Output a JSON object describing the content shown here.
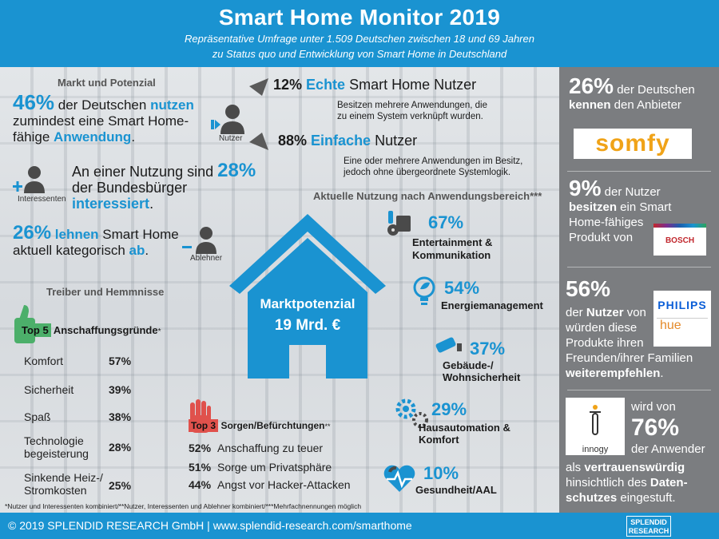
{
  "header": {
    "title": "Smart Home Monitor 2019",
    "subtitle_1": "Repräsentative Umfrage unter 1.509 Deutschen zwischen 18 und 69 Jahren",
    "subtitle_2": "zu Status quo und Entwicklung von Smart Home in Deutschland"
  },
  "market": {
    "heading": "Markt und Potenzial",
    "users": {
      "pct": "46%",
      "t1": " der Deutschen ",
      "t2": "nutzen",
      "t3": "zumindest eine Smart Home-",
      "t4": "fähige ",
      "t5": "Anwendung",
      "t6": ".",
      "icon_label": "Nutzer"
    },
    "interested": {
      "t1": "An einer Nutzung sind",
      "pct": "28%",
      "t2": "der Bundesbürger ",
      "t3": "interessiert",
      "t4": ".",
      "icon_label": "Interessenten"
    },
    "rejecters": {
      "pct": "26%",
      "t1": " lehnen",
      "t2": " Smart Home",
      "t3": "aktuell kategorisch ",
      "t4": "ab",
      "t5": ".",
      "icon_label": "Ablehner"
    }
  },
  "segments": {
    "real": {
      "pct": "12%",
      "label_blue": "Echte",
      "label": " Smart Home Nutzer",
      "desc_1": "Besitzen mehrere Anwendungen, die",
      "desc_2": "zu einem System verknüpft wurden."
    },
    "simple": {
      "pct": "88%",
      "label_blue": "Einfache",
      "label": " Nutzer",
      "desc_1": "Eine oder mehrere Anwendungen im Besitz,",
      "desc_2": "jedoch ohne übergeordnete Systemlogik."
    }
  },
  "potential": {
    "label": "Marktpotenzial",
    "value": "19 Mrd. €"
  },
  "usage": {
    "heading": "Aktuelle Nutzung nach Anwendungsbereich***",
    "items": [
      {
        "pct": "67%",
        "l1": "Entertainment &",
        "l2": "Kommunikation",
        "icon": "media-icon"
      },
      {
        "pct": "54%",
        "l1": "Energiemanagement",
        "l2": "",
        "icon": "bulb-leaf-icon"
      },
      {
        "pct": "37%",
        "l1": "Gebäude-/",
        "l2": "Wohnsicherheit",
        "icon": "camera-icon"
      },
      {
        "pct": "29%",
        "l1": "Hausautomation &",
        "l2": "Komfort",
        "icon": "gears-icon"
      },
      {
        "pct": "10%",
        "l1": "Gesundheit/AAL",
        "l2": "",
        "icon": "heart-pulse-icon"
      }
    ]
  },
  "drivers": {
    "heading": "Treiber und Hemmnisse",
    "top5_label": "Top 5",
    "top5_title": " Anschaffungsgründe",
    "top5_star": "*",
    "reasons": [
      {
        "label": "Komfort",
        "pct": "57%"
      },
      {
        "label": "Sicherheit",
        "pct": "39%"
      },
      {
        "label": "Spaß",
        "pct": "38%"
      },
      {
        "label": "Technologie begeisterung",
        "pct": "28%"
      },
      {
        "label": "Sinkende Heiz-/ Stromkosten",
        "pct": "25%"
      }
    ],
    "top3_label": "Top 3",
    "top3_title": " Sorgen/Befürchtungen",
    "top3_star": "**",
    "concerns": [
      {
        "pct": "52%",
        "label": "Anschaffung zu teuer"
      },
      {
        "pct": "51%",
        "label": "Sorge um Privatsphäre"
      },
      {
        "pct": "44%",
        "label": "Angst vor Hacker-Attacken"
      }
    ]
  },
  "footnote": "*Nutzer und Interessenten kombiniert/**Nutzer, Interessenten und Ablehner kombiniert/***Mehrfachnennungen möglich",
  "sidebar": {
    "somfy": {
      "pct": "26%",
      "t1": " der Deutschen",
      "t2": "kennen",
      "t3": " den Anbieter",
      "logo": "somfy"
    },
    "bosch": {
      "pct": "9%",
      "t1": " der Nutzer",
      "t2": "besitzen",
      "t3": " ein Smart",
      "t4": "Home-fähiges",
      "t5": "Produkt von",
      "logo": "BOSCH"
    },
    "philips": {
      "pct": "56%",
      "t1": "der ",
      "t2": "Nutzer",
      "t3": " von",
      "t4": "würden diese",
      "t5": "Produkte ihren",
      "t6": "Freunden/ihrer Familien",
      "t7": "weiterempfehlen",
      "t8": ".",
      "logo1": "PHILIPS",
      "logo2": "hue"
    },
    "innogy": {
      "t1": "wird von",
      "pct": "76%",
      "t2": "der Anwender",
      "t3": "als ",
      "t4": "vertrauenswürdig",
      "t5": "hinsichtlich des ",
      "t6": "Daten-",
      "t7": "schutzes",
      "t8": " eingestuft.",
      "logo": "innogy"
    }
  },
  "footer": {
    "text": "© 2019 SPLENDID RESEARCH GmbH | www.splendid-research.com/smarthome",
    "logo_1": "SPLENDID",
    "logo_2": "RESEARCH"
  },
  "colors": {
    "accent": "#1a93d1",
    "red": "#e0514c",
    "green": "#4caf6a",
    "sidebar": "#7b7d80"
  }
}
